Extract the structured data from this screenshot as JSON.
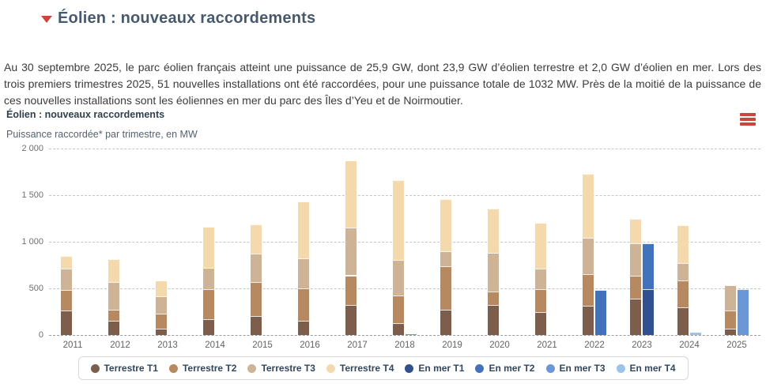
{
  "header": {
    "title": "Éolien : nouveaux raccordements"
  },
  "intro": {
    "text": "Au 30 septembre 2025, le parc éolien français atteint une puissance de 25,9 GW, dont 23,9 GW d’éolien terrestre et 2,0 GW d’éolien en mer. Lors des trois premiers trimestres 2025, 51 nouvelles installations ont été raccordées, pour une puissance totale de 1032 MW. Près de la moitié de la puissance de ces nouvelles installations sont les éoliennes en mer du parc des Îles d’Yeu et de Noirmoutier."
  },
  "chart": {
    "title": "Éolien : nouveaux raccordements",
    "subtitle": "Puissance raccordée* par trimestre, en MW"
  },
  "colors": {
    "accent_red": "#c7473c",
    "title_blue_gray": "#47596c",
    "legend_text": "#32475c"
  },
  "chart_data": {
    "type": "bar",
    "stacked": true,
    "title": "Éolien : nouveaux raccordements",
    "subtitle": "Puissance raccordée* par trimestre, en MW",
    "unit": "MW",
    "xlabel": "",
    "ylabel": "Puissance raccordée par trimestre (MW)",
    "ylim": [
      0,
      2000
    ],
    "yticks": [
      0,
      500,
      1000,
      1500,
      2000
    ],
    "ytick_labels": [
      "0",
      "500",
      "1 000",
      "1 500",
      "2 000"
    ],
    "grid": "horizontal dashed",
    "legend_position": "bottom",
    "categories": [
      "2011",
      "2012",
      "2013",
      "2014",
      "2015",
      "2016",
      "2017",
      "2018",
      "2019",
      "2020",
      "2021",
      "2022",
      "2023",
      "2024",
      "2025"
    ],
    "series": [
      {
        "name": "Terrestre T1",
        "stack": "terrestre",
        "color": "#7d5e4c",
        "values": [
          265,
          150,
          70,
          170,
          200,
          150,
          320,
          125,
          270,
          325,
          250,
          315,
          390,
          300,
          70
        ]
      },
      {
        "name": "Terrestre T2",
        "stack": "terrestre",
        "color": "#b78961",
        "values": [
          215,
          120,
          160,
          325,
          370,
          350,
          320,
          295,
          470,
          145,
          245,
          340,
          245,
          285,
          195
        ]
      },
      {
        "name": "Terrestre T3",
        "stack": "terrestre",
        "color": "#cfb396",
        "values": [
          235,
          295,
          185,
          225,
          305,
          320,
          510,
          385,
          160,
          415,
          220,
          385,
          350,
          190,
          270
        ]
      },
      {
        "name": "Terrestre T4",
        "stack": "terrestre",
        "color": "#f4d9ad",
        "values": [
          135,
          250,
          170,
          440,
          310,
          615,
          725,
          855,
          555,
          475,
          485,
          685,
          265,
          405,
          0
        ]
      },
      {
        "name": "En mer T1",
        "stack": "enmer",
        "color": "#31508f",
        "values": [
          0,
          0,
          0,
          0,
          0,
          0,
          0,
          0,
          0,
          0,
          0,
          0,
          490,
          0,
          0
        ]
      },
      {
        "name": "En mer T2",
        "stack": "enmer",
        "color": "#4372bd",
        "values": [
          0,
          0,
          0,
          0,
          0,
          0,
          0,
          0,
          0,
          0,
          0,
          480,
          490,
          0,
          0
        ]
      },
      {
        "name": "En mer T3",
        "stack": "enmer",
        "color": "#6b97d6",
        "values": [
          0,
          0,
          0,
          0,
          0,
          0,
          0,
          5,
          0,
          0,
          0,
          0,
          0,
          0,
          495
        ]
      },
      {
        "name": "En mer T4",
        "stack": "enmer",
        "color": "#9cc3e9",
        "values": [
          0,
          0,
          0,
          0,
          0,
          0,
          0,
          0,
          0,
          0,
          0,
          0,
          0,
          25,
          0
        ]
      }
    ]
  }
}
